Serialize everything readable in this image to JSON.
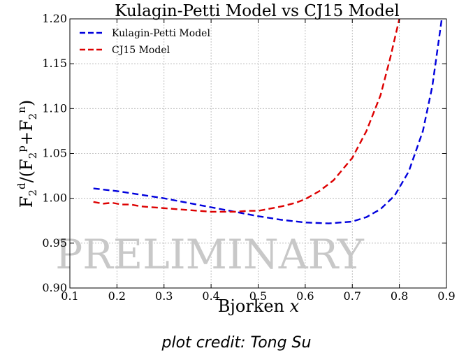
{
  "chart_data": {
    "type": "line",
    "title": "Kulagin-Petti Model vs CJ15 Model",
    "xlabel": "Bjorken x",
    "ylabel": "F2d/(F2p+F2n)",
    "xlim": [
      0.1,
      0.9
    ],
    "ylim": [
      0.9,
      1.2
    ],
    "xticks": [
      "0.1",
      "0.2",
      "0.3",
      "0.4",
      "0.5",
      "0.6",
      "0.7",
      "0.8",
      "0.9"
    ],
    "yticks": [
      "0.90",
      "0.95",
      "1.00",
      "1.05",
      "1.10",
      "1.15",
      "1.20"
    ],
    "grid": true,
    "legend_position": "top-left",
    "watermark": "PRELIMINARY",
    "series": [
      {
        "name": "Kulagin-Petti Model",
        "color": "#0000dd",
        "style": "dashed",
        "x": [
          0.15,
          0.2,
          0.25,
          0.3,
          0.35,
          0.4,
          0.45,
          0.5,
          0.55,
          0.6,
          0.65,
          0.7,
          0.73,
          0.76,
          0.79,
          0.82,
          0.85,
          0.87,
          0.89
        ],
        "y": [
          1.011,
          1.008,
          1.004,
          1.0,
          0.995,
          0.99,
          0.985,
          0.98,
          0.976,
          0.973,
          0.972,
          0.974,
          0.979,
          0.988,
          1.003,
          1.03,
          1.075,
          1.125,
          1.2
        ]
      },
      {
        "name": "CJ15 Model",
        "color": "#dd0000",
        "style": "dashed",
        "x": [
          0.15,
          0.17,
          0.19,
          0.21,
          0.23,
          0.25,
          0.3,
          0.35,
          0.4,
          0.45,
          0.48,
          0.5,
          0.52,
          0.55,
          0.58,
          0.6,
          0.63,
          0.66,
          0.7,
          0.73,
          0.76,
          0.78,
          0.8
        ],
        "y": [
          0.996,
          0.994,
          0.995,
          0.993,
          0.993,
          0.991,
          0.989,
          0.987,
          0.985,
          0.985,
          0.986,
          0.986,
          0.988,
          0.991,
          0.995,
          0.999,
          1.008,
          1.02,
          1.045,
          1.075,
          1.115,
          1.155,
          1.2
        ]
      }
    ]
  },
  "credit": "plot credit: Tong Su"
}
